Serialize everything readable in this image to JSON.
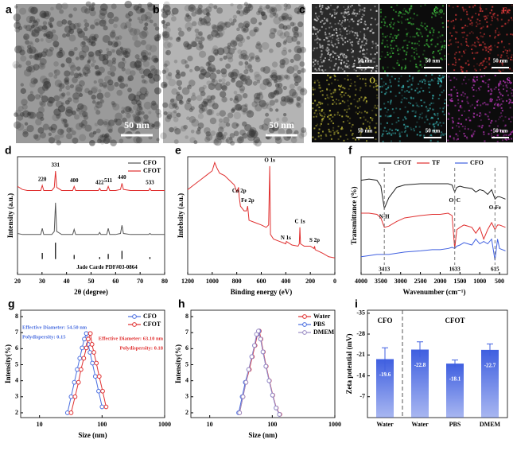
{
  "panel_a": {
    "letter": "a",
    "scale_bar": "50 nm"
  },
  "panel_b": {
    "letter": "b",
    "scale_bar": "50 nm"
  },
  "panel_c": {
    "letter": "c",
    "maps": [
      {
        "scale_bar": "50 nm"
      },
      {
        "label": "Co",
        "color": "#3fbf3f",
        "scale_bar": "50 nm"
      },
      {
        "label": "Fe",
        "color": "#e23a3a",
        "scale_bar": "50 nm"
      },
      {
        "label": "O",
        "color": "#c8c23a",
        "scale_bar": "50 nm"
      },
      {
        "label": "N",
        "color": "#3ab8b8",
        "scale_bar": "50 nm"
      },
      {
        "label": "S",
        "color": "#c43ac4",
        "scale_bar": "50 nm"
      }
    ]
  },
  "chart_data": [
    {
      "type": "line",
      "letter": "d",
      "x_label": "2θ (degree)",
      "y_label": "Intensity (a.u.)",
      "xlim": [
        20,
        80
      ],
      "xticks": [
        20,
        30,
        40,
        50,
        60,
        70,
        80
      ],
      "ylim": [
        -15,
        100
      ],
      "legend": "upper right",
      "x": [
        20,
        22,
        24,
        26,
        28,
        29.5,
        30.1,
        30.7,
        32,
        34,
        35,
        35.5,
        36,
        38,
        40,
        42.5,
        43.1,
        43.7,
        46,
        50,
        53,
        53.5,
        54,
        56.4,
        57,
        57.6,
        60,
        62,
        62.6,
        63.2,
        66,
        70,
        73.5,
        74,
        74.5,
        78,
        80
      ],
      "series": [
        {
          "name": "CFO",
          "color": "#555555",
          "values": [
            25,
            24,
            24,
            24,
            24,
            24,
            30,
            24,
            24,
            24,
            27,
            55,
            27,
            24,
            24,
            24,
            29,
            24,
            24,
            24,
            24,
            26,
            24,
            24,
            30,
            24,
            24,
            25,
            33,
            25,
            24,
            24,
            24,
            25,
            24,
            24,
            24
          ]
        },
        {
          "name": "CFOT",
          "color": "#e03030",
          "values": [
            71,
            68,
            67,
            67,
            67,
            67,
            72,
            67,
            67,
            67,
            70,
            86,
            70,
            67,
            67,
            67,
            71,
            67,
            67,
            67,
            67,
            69,
            67,
            67,
            71,
            67,
            67,
            68,
            74,
            68,
            67,
            67,
            67,
            69,
            67,
            67,
            67
          ]
        }
      ],
      "reference": {
        "name": "Jade Carde PDF#03-0864",
        "x": [
          30.1,
          35.5,
          43.1,
          53.5,
          57,
          62.6,
          74
        ],
        "values": [
          6,
          16,
          4,
          2,
          5,
          8,
          2
        ]
      },
      "annotations": [
        {
          "text": "220",
          "x": 30.1
        },
        {
          "text": "331",
          "x": 35.5
        },
        {
          "text": "400",
          "x": 43.1
        },
        {
          "text": "422",
          "x": 53.5
        },
        {
          "text": "511",
          "x": 57
        },
        {
          "text": "440",
          "x": 62.6
        },
        {
          "text": "533",
          "x": 74
        }
      ]
    },
    {
      "type": "line",
      "letter": "e",
      "x_label": "Binding energy (eV)",
      "y_label": "Intebsity (a.u.)",
      "xlim": [
        1200,
        0
      ],
      "xticks": [
        1200,
        1000,
        800,
        600,
        400,
        200,
        0
      ],
      "ylim": [
        0,
        100
      ],
      "x": [
        1200,
        1150,
        1100,
        1050,
        1000,
        980,
        960,
        940,
        900,
        860,
        820,
        800,
        785,
        780,
        770,
        740,
        720,
        711,
        700,
        650,
        600,
        560,
        540,
        531,
        525,
        500,
        450,
        400,
        395,
        350,
        300,
        290,
        285,
        280,
        250,
        200,
        170,
        165,
        160,
        100,
        50,
        0
      ],
      "series": [
        {
          "color": "#e03030",
          "values": [
            72,
            76,
            80,
            84,
            88,
            95,
            90,
            86,
            84,
            80,
            76,
            70,
            74,
            66,
            58,
            54,
            54,
            58,
            46,
            44,
            42,
            40,
            42,
            92,
            34,
            30,
            28,
            26,
            28,
            25,
            24,
            26,
            40,
            26,
            24,
            24,
            22,
            24,
            21,
            18,
            15,
            14
          ]
        }
      ],
      "annotations": [
        {
          "text": "Co 2p",
          "x": 780
        },
        {
          "text": "Fe 2p",
          "x": 711
        },
        {
          "text": "O 1s",
          "x": 531
        },
        {
          "text": "N 1s",
          "x": 400
        },
        {
          "text": "C 1s",
          "x": 285
        },
        {
          "text": "S 2p",
          "x": 165
        }
      ]
    },
    {
      "type": "line",
      "letter": "f",
      "x_label": "Wavenumber (cm⁻¹)",
      "y_label": "Transmittance (%)",
      "xlim": [
        4000,
        300
      ],
      "xticks": [
        4000,
        3500,
        3000,
        2500,
        2000,
        1500,
        1000,
        500
      ],
      "ylim": [
        0,
        100
      ],
      "legend": "upper center",
      "x": [
        4000,
        3800,
        3600,
        3500,
        3413,
        3300,
        3100,
        2900,
        2500,
        2200,
        2000,
        1800,
        1700,
        1633,
        1580,
        1500,
        1400,
        1200,
        1100,
        1000,
        900,
        800,
        700,
        615,
        550,
        500,
        350
      ],
      "series": [
        {
          "name": "CFOT",
          "color": "#222222",
          "values": [
            80,
            81,
            80,
            75,
            56,
            65,
            74,
            76,
            77,
            77,
            77,
            77,
            76,
            70,
            74,
            75,
            74,
            73,
            70,
            72,
            71,
            68,
            72,
            64,
            66,
            66,
            64
          ]
        },
        {
          "name": "TF",
          "color": "#e03030",
          "values": [
            52,
            52,
            51,
            48,
            40,
            41,
            45,
            48,
            50,
            51,
            51,
            52,
            50,
            22,
            38,
            40,
            42,
            40,
            35,
            40,
            30,
            38,
            44,
            38,
            42,
            42,
            40
          ]
        },
        {
          "name": "CFO",
          "color": "#4060e0",
          "values": [
            15,
            16,
            17,
            17,
            17,
            17,
            18,
            19,
            20,
            21,
            21,
            22,
            23,
            22,
            24,
            25,
            27,
            25,
            30,
            26,
            28,
            26,
            30,
            12,
            30,
            22,
            20
          ]
        }
      ],
      "ref_lines": [
        3413,
        1633,
        615
      ],
      "annotations": [
        {
          "text": "N-H",
          "x": 3413
        },
        {
          "text": "O=C",
          "x": 1633
        },
        {
          "text": "O-Fe",
          "x": 615
        }
      ]
    },
    {
      "type": "line",
      "letter": "g",
      "x_label": "Size (nm)",
      "y_label": "Intensity(%)",
      "xlog": true,
      "markers": true,
      "xlim": [
        5,
        1000
      ],
      "xticks": [
        10,
        100,
        1000
      ],
      "ylim": [
        1.7,
        8.4
      ],
      "yticks": [
        2,
        3,
        4,
        5,
        6,
        7,
        8
      ],
      "legend": "upper right",
      "series": [
        {
          "name": "CFO",
          "color": "#4a6ee0",
          "x": [
            28,
            32,
            36,
            40,
            44,
            48,
            52,
            56,
            60,
            64,
            70,
            78,
            88,
            100
          ],
          "values": [
            2.0,
            3.0,
            3.9,
            4.7,
            5.4,
            6.05,
            6.6,
            6.95,
            6.27,
            5.77,
            5.1,
            4.27,
            3.35,
            2.37
          ]
        },
        {
          "name": "CFOT",
          "color": "#e03030",
          "x": [
            32,
            37,
            42,
            46,
            51,
            56,
            60,
            65,
            69,
            74,
            81,
            90,
            102,
            116
          ],
          "values": [
            2.0,
            3.0,
            3.9,
            4.7,
            5.4,
            6.05,
            6.6,
            6.95,
            6.27,
            5.77,
            5.1,
            4.27,
            3.35,
            2.37
          ]
        }
      ],
      "notes": [
        {
          "text": "Effective Diameter: 54.50 nm",
          "color": "#4a6ee0"
        },
        {
          "text": "Polydispersity: 0.15",
          "color": "#4a6ee0"
        },
        {
          "text": "Effective Diameter: 63.10 nm",
          "color": "#e03030"
        },
        {
          "text": "Polydispersity: 0.18",
          "color": "#e03030"
        }
      ]
    },
    {
      "type": "line",
      "letter": "h",
      "x_label": "Size (nm)",
      "y_label": "Intensity(%)",
      "xlog": true,
      "markers": true,
      "xlim": [
        5,
        1000
      ],
      "xticks": [
        10,
        100,
        1000
      ],
      "ylim": [
        1.7,
        8.4
      ],
      "yticks": [
        2,
        3,
        4,
        5,
        6,
        7,
        8
      ],
      "legend": "upper right",
      "series": [
        {
          "name": "Water",
          "color": "#e03030",
          "x": [
            30,
            34,
            38,
            43,
            48,
            53,
            58,
            62,
            66,
            72,
            80,
            90,
            102,
            116,
            132
          ],
          "values": [
            2.0,
            3.0,
            3.9,
            4.7,
            5.5,
            6.2,
            6.9,
            7.1,
            6.6,
            5.8,
            4.9,
            4.0,
            3.1,
            2.3,
            1.9
          ]
        },
        {
          "name": "PBS",
          "color": "#4a6ee0",
          "x": [
            29,
            33,
            37,
            42,
            47,
            52,
            57,
            61,
            65,
            71,
            79,
            89,
            101,
            115,
            130
          ],
          "values": [
            2.0,
            3.0,
            3.9,
            4.7,
            5.5,
            6.2,
            6.9,
            7.1,
            6.6,
            5.8,
            4.9,
            4.0,
            3.1,
            2.3,
            1.9
          ]
        },
        {
          "name": "DMEM",
          "color": "#9a8cc4",
          "x": [
            30,
            34,
            38,
            42,
            47,
            52,
            56,
            60,
            65,
            71,
            79,
            89,
            101,
            115,
            130
          ],
          "values": [
            2.0,
            3.0,
            3.9,
            4.7,
            5.5,
            6.2,
            6.9,
            7.1,
            6.6,
            5.8,
            4.9,
            4.0,
            3.1,
            2.3,
            1.9
          ]
        }
      ]
    },
    {
      "type": "bar",
      "letter": "i",
      "y_label": "Zeta potential (mV)",
      "color": "#3f5fe0",
      "categories": [
        "Water",
        "Water",
        "PBS",
        "DMEM"
      ],
      "values": [
        -19.6,
        -22.8,
        -18.1,
        -22.7
      ],
      "errors": [
        3.8,
        2.6,
        1.2,
        2.0
      ],
      "groups": [
        "CFO",
        "CFOT"
      ],
      "ylim": [
        0,
        -36
      ],
      "yticks": [
        -35,
        -28,
        -21,
        -14,
        -7
      ]
    }
  ]
}
